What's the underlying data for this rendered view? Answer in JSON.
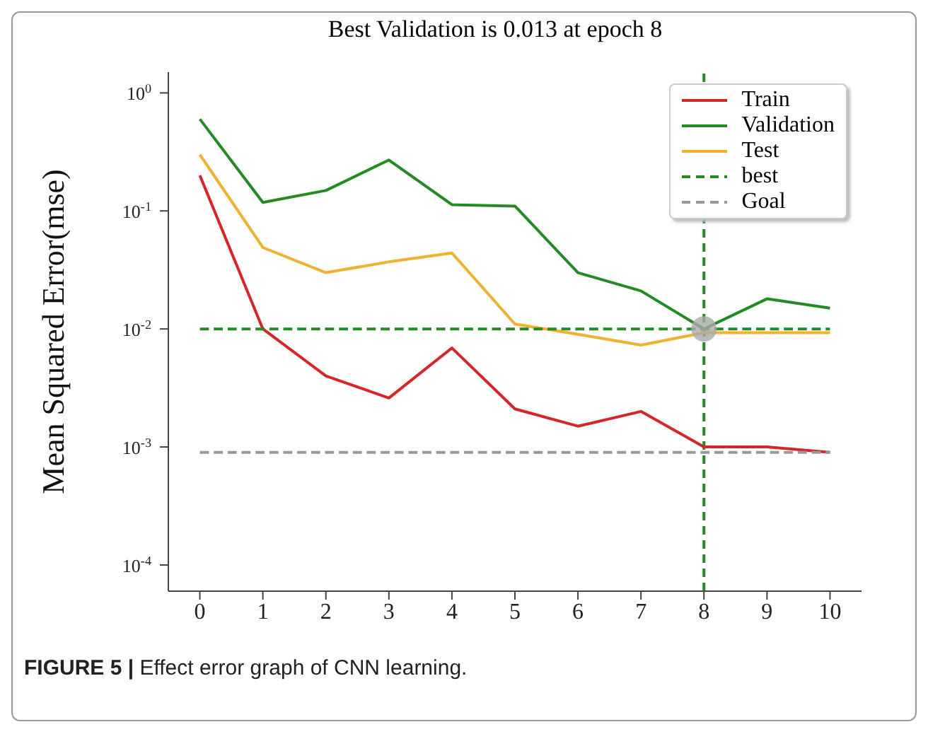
{
  "chart_data": {
    "type": "line",
    "title": "Best Validation is 0.013 at epoch 8",
    "ylabel": "Mean Squared Error(mse)",
    "annotations": [
      "FIGURE 5 | Effect error graph of CNN learning."
    ],
    "x": [
      0,
      1,
      2,
      3,
      4,
      5,
      6,
      7,
      8,
      9,
      10
    ],
    "series": [
      {
        "name": "Train",
        "color": "#d62728",
        "values": [
          0.2,
          0.01,
          0.004,
          0.0026,
          0.0069,
          0.0021,
          0.0015,
          0.002,
          0.001,
          0.001,
          0.0009
        ]
      },
      {
        "name": "Validation",
        "color": "#228b22",
        "values": [
          0.6,
          0.118,
          0.149,
          0.27,
          0.113,
          0.11,
          0.03,
          0.021,
          0.01,
          0.018,
          0.015
        ]
      },
      {
        "name": "Test",
        "color": "#f0b030",
        "values": [
          0.3,
          0.049,
          0.03,
          0.037,
          0.044,
          0.011,
          0.009,
          0.0073,
          0.0093,
          0.0093,
          0.0093
        ]
      },
      {
        "name": "best",
        "color": "#228b22",
        "line_style": "dashed",
        "values": [
          0.01,
          0.01,
          0.01,
          0.01,
          0.01,
          0.01,
          0.01,
          0.01,
          0.01,
          0.01,
          0.01
        ]
      },
      {
        "name": "Goal",
        "color": "#999999",
        "line_style": "dashed",
        "values": [
          0.0009,
          0.0009,
          0.0009,
          0.0009,
          0.0009,
          0.0009,
          0.0009,
          0.0009,
          0.0009,
          0.0009,
          0.0009
        ]
      },
      {
        "type": "scatter",
        "color": "#aaaaaa",
        "marker": "circle",
        "x": [
          8
        ],
        "values": [
          0.01
        ]
      }
    ],
    "ref_lines": [
      {
        "axis": "x",
        "value": 8,
        "color": "#228b22",
        "line_style": "dashed"
      }
    ],
    "xlim": [
      -0.5,
      10.5
    ],
    "xticks": [
      0,
      1,
      2,
      3,
      4,
      5,
      6,
      7,
      8,
      9,
      10
    ],
    "ylim": [
      6e-05,
      1.5
    ],
    "log": true,
    "yticks": [
      {
        "value": 0.0001,
        "label": "10$^{-4}$"
      },
      {
        "value": 0.001,
        "label": "10$^{-3}$"
      },
      {
        "value": 0.01,
        "label": "10$^{-2}$"
      },
      {
        "value": 0.1,
        "label": "10$^{-1}$"
      },
      {
        "value": 1,
        "label": "10$^{0}$"
      }
    ],
    "grid": false,
    "legend": "top right",
    "marker": "none",
    "line_style": "solid"
  }
}
